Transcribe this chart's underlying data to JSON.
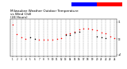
{
  "title": "Milwaukee Weather Outdoor Temperature\nvs Wind Chill\n(24 Hours)",
  "title_fontsize": 3.0,
  "bg_color": "#ffffff",
  "plot_bg_color": "#ffffff",
  "grid_color": "#888888",
  "xlim": [
    0.5,
    24.5
  ],
  "ylim": [
    -6,
    34
  ],
  "yticks": [
    31,
    13,
    -4
  ],
  "xticks": [
    1,
    2,
    3,
    4,
    5,
    6,
    7,
    8,
    9,
    10,
    11,
    12,
    13,
    14,
    15,
    16,
    17,
    18,
    19,
    20,
    21,
    22,
    23,
    24
  ],
  "temp_color": "#ff0000",
  "wind_color": "#000000",
  "legend_blue_color": "#0000ff",
  "legend_red_color": "#ff0000",
  "temp_data": [
    [
      1,
      28
    ],
    [
      2,
      18
    ],
    [
      3,
      15
    ],
    [
      4,
      13
    ],
    [
      7,
      12
    ],
    [
      8,
      12
    ],
    [
      9,
      12
    ],
    [
      10,
      12
    ],
    [
      11,
      13
    ],
    [
      12,
      14
    ],
    [
      13,
      18
    ],
    [
      14,
      19
    ],
    [
      15,
      21
    ],
    [
      16,
      23
    ],
    [
      17,
      24
    ],
    [
      18,
      24
    ],
    [
      19,
      23
    ],
    [
      20,
      22
    ],
    [
      21,
      20
    ],
    [
      22,
      19
    ],
    [
      23,
      16
    ],
    [
      24,
      14
    ]
  ],
  "wind_data": [
    [
      5,
      15
    ],
    [
      6,
      13
    ],
    [
      13,
      17
    ],
    [
      14,
      17
    ],
    [
      15,
      20
    ],
    [
      16,
      21
    ],
    [
      20,
      16
    ],
    [
      21,
      15
    ],
    [
      22,
      14
    ]
  ]
}
